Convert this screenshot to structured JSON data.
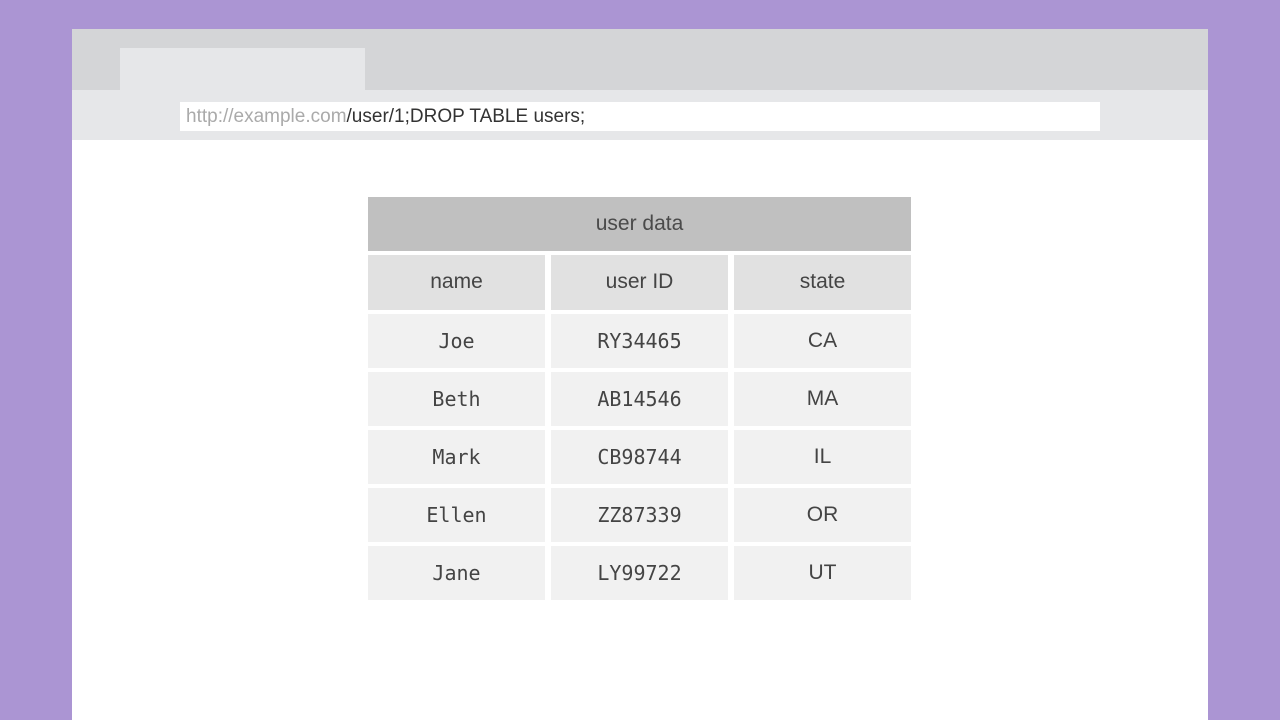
{
  "browser": {
    "url_host": "http://example.com",
    "url_path": "/user/1;DROP TABLE users;"
  },
  "table": {
    "caption": "user data",
    "columns": [
      "name",
      "user ID",
      "state"
    ],
    "rows": [
      [
        "Joe",
        "RY34465",
        "CA"
      ],
      [
        "Beth",
        "AB14546",
        "MA"
      ],
      [
        "Mark",
        "CB98744",
        "IL"
      ],
      [
        "Ellen",
        "ZZ87339",
        "OR"
      ],
      [
        "Jane",
        "LY99722",
        "UT"
      ]
    ]
  }
}
